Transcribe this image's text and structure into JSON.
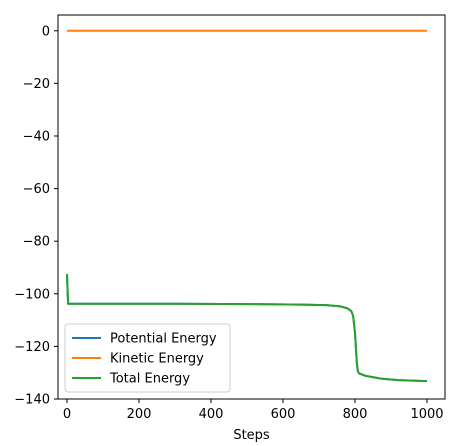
{
  "chart_data": {
    "type": "line",
    "title": "",
    "xlabel": "Steps",
    "ylabel": "",
    "xlim": [
      -25,
      1050
    ],
    "ylim": [
      -140,
      6
    ],
    "xticks": [
      0,
      200,
      400,
      600,
      800,
      1000
    ],
    "yticks": [
      0,
      -20,
      -40,
      -60,
      -80,
      -100,
      -120,
      -140
    ],
    "legend_position": "lower-left",
    "grid": false,
    "series": [
      {
        "name": "Potential Energy",
        "color": "#1f77b4",
        "x": [
          0,
          3,
          100,
          300,
          500,
          650,
          720,
          760,
          780,
          790,
          795,
          800,
          805,
          808,
          812,
          830,
          870,
          920,
          1000
        ],
        "y": [
          -92.5,
          -103.8,
          -103.8,
          -103.8,
          -103.9,
          -104.1,
          -104.3,
          -104.8,
          -105.6,
          -106.6,
          -108.5,
          -115,
          -126,
          -129.5,
          -130.3,
          -131.2,
          -132.2,
          -132.8,
          -133.2
        ]
      },
      {
        "name": "Kinetic Energy",
        "color": "#ff7f0e",
        "x": [
          0,
          1000
        ],
        "y": [
          0,
          0
        ]
      },
      {
        "name": "Total Energy",
        "color": "#2ca02c",
        "x": [
          0,
          3,
          100,
          300,
          500,
          650,
          720,
          760,
          780,
          790,
          795,
          800,
          805,
          808,
          812,
          830,
          870,
          920,
          1000
        ],
        "y": [
          -92.5,
          -103.8,
          -103.8,
          -103.8,
          -103.9,
          -104.1,
          -104.3,
          -104.8,
          -105.6,
          -106.6,
          -108.5,
          -115,
          -126,
          -129.5,
          -130.3,
          -131.2,
          -132.2,
          -132.8,
          -133.2
        ]
      }
    ]
  }
}
